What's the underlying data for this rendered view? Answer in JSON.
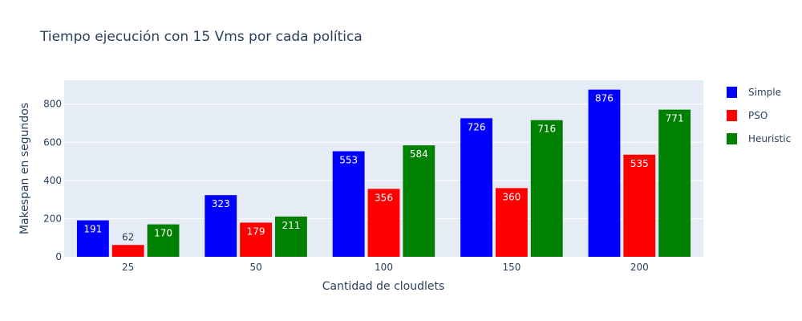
{
  "chart_data": {
    "type": "bar",
    "title": "Tiempo ejecución con 15 Vms por cada política",
    "xlabel": "Cantidad de cloudlets",
    "ylabel": "Makespan en segundos",
    "categories": [
      "25",
      "50",
      "100",
      "150",
      "200"
    ],
    "ylim": [
      0,
      925
    ],
    "yticks": [
      0,
      200,
      400,
      600,
      800
    ],
    "grid": true,
    "legend_position": "right",
    "series": [
      {
        "name": "Simple",
        "color": "#0000ff",
        "values": [
          191,
          323,
          553,
          726,
          876
        ]
      },
      {
        "name": "PSO",
        "color": "#ff0000",
        "values": [
          62,
          179,
          356,
          360,
          535
        ]
      },
      {
        "name": "Heuristic",
        "color": "#008000",
        "values": [
          170,
          211,
          584,
          716,
          771
        ]
      }
    ]
  }
}
